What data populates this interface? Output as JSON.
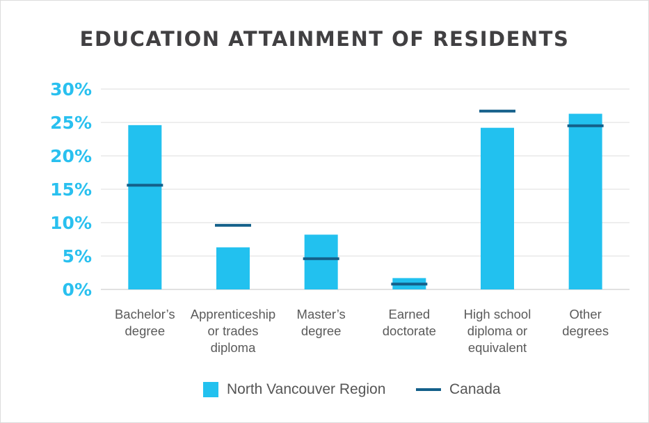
{
  "chart_data": {
    "type": "bar",
    "title": "EDUCATION ATTAINMENT OF RESIDENTS",
    "categories": [
      [
        "Bachelor’s",
        "degree"
      ],
      [
        "Apprenticeship",
        "or trades",
        "diploma"
      ],
      [
        "Master’s",
        "degree"
      ],
      [
        "Earned",
        "doctorate"
      ],
      [
        "High school",
        "diploma or",
        "equivalent"
      ],
      [
        "Other",
        "degrees"
      ]
    ],
    "series": [
      {
        "name": "North Vancouver Region",
        "kind": "bar",
        "color": "#22c1ef",
        "values": [
          24.6,
          6.3,
          8.2,
          1.7,
          24.2,
          26.3
        ]
      },
      {
        "name": "Canada",
        "kind": "marker",
        "color": "#14608a",
        "values": [
          15.6,
          9.6,
          4.6,
          0.8,
          26.7,
          24.5
        ]
      }
    ],
    "yticks": [
      "0%",
      "5%",
      "10%",
      "15%",
      "20%",
      "25%",
      "30%"
    ],
    "ylim": [
      0,
      30
    ],
    "grid": true,
    "legend_position": "bottom-center"
  }
}
